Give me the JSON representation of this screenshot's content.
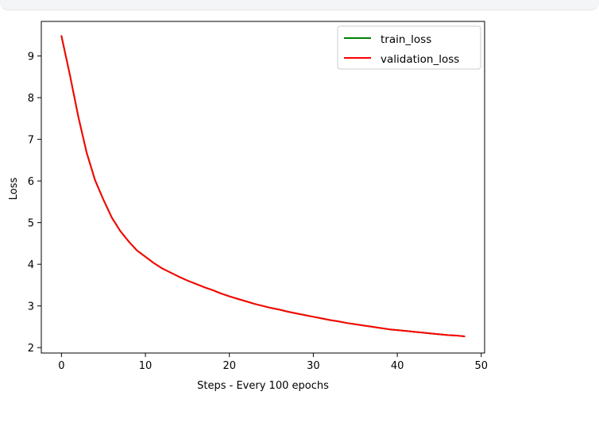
{
  "chart_data": {
    "type": "line",
    "xlabel": "Steps - Every 100 epochs",
    "ylabel": "Loss",
    "xlim": [
      -2.4,
      50.4
    ],
    "ylim": [
      1.87,
      9.83
    ],
    "xticks": [
      0,
      10,
      20,
      30,
      40,
      50
    ],
    "yticks": [
      2,
      3,
      4,
      5,
      6,
      7,
      8,
      9
    ],
    "grid": false,
    "legend_position": "top-right",
    "series": [
      {
        "name": "train_loss",
        "color": "#008000",
        "x": [
          0,
          1,
          2,
          3,
          4,
          5,
          6,
          7,
          8,
          9,
          10,
          11,
          12,
          13,
          14,
          15,
          16,
          17,
          18,
          19,
          20,
          21,
          22,
          23,
          24,
          25,
          26,
          27,
          28,
          29,
          30,
          31,
          32,
          33,
          34,
          35,
          36,
          37,
          38,
          39,
          40,
          41,
          42,
          43,
          44,
          45,
          46,
          47,
          48
        ],
        "y": [
          9.48,
          8.55,
          7.55,
          6.68,
          6.02,
          5.55,
          5.12,
          4.8,
          4.55,
          4.33,
          4.18,
          4.03,
          3.9,
          3.8,
          3.7,
          3.61,
          3.53,
          3.45,
          3.38,
          3.3,
          3.23,
          3.17,
          3.11,
          3.05,
          3.0,
          2.95,
          2.91,
          2.86,
          2.82,
          2.78,
          2.74,
          2.7,
          2.66,
          2.63,
          2.59,
          2.56,
          2.53,
          2.5,
          2.47,
          2.44,
          2.42,
          2.4,
          2.38,
          2.36,
          2.34,
          2.32,
          2.3,
          2.29,
          2.27
        ]
      },
      {
        "name": "validation_loss",
        "color": "#ff0000",
        "x": [
          0,
          1,
          2,
          3,
          4,
          5,
          6,
          7,
          8,
          9,
          10,
          11,
          12,
          13,
          14,
          15,
          16,
          17,
          18,
          19,
          20,
          21,
          22,
          23,
          24,
          25,
          26,
          27,
          28,
          29,
          30,
          31,
          32,
          33,
          34,
          35,
          36,
          37,
          38,
          39,
          40,
          41,
          42,
          43,
          44,
          45,
          46,
          47,
          48
        ],
        "y": [
          9.48,
          8.55,
          7.55,
          6.68,
          6.02,
          5.55,
          5.12,
          4.8,
          4.55,
          4.33,
          4.18,
          4.03,
          3.9,
          3.8,
          3.7,
          3.61,
          3.53,
          3.45,
          3.38,
          3.3,
          3.23,
          3.17,
          3.11,
          3.05,
          3.0,
          2.95,
          2.91,
          2.86,
          2.82,
          2.78,
          2.74,
          2.7,
          2.66,
          2.63,
          2.59,
          2.56,
          2.53,
          2.5,
          2.47,
          2.44,
          2.42,
          2.4,
          2.38,
          2.36,
          2.34,
          2.32,
          2.3,
          2.29,
          2.27
        ]
      }
    ]
  }
}
